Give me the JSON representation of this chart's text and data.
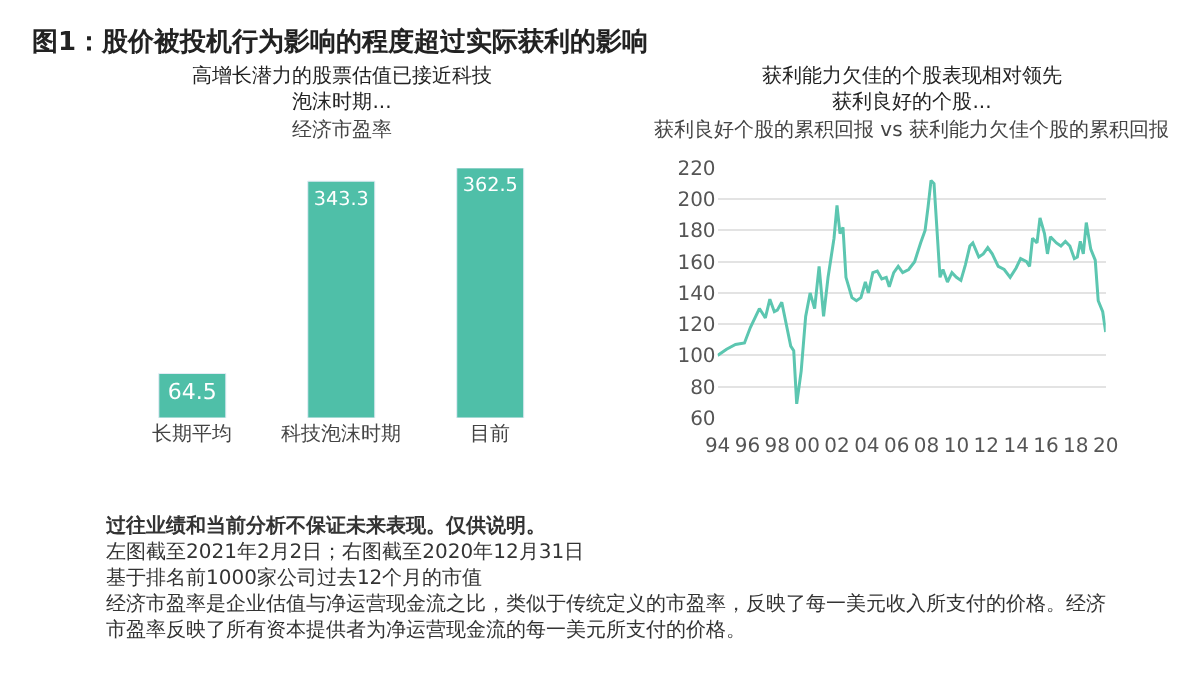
{
  "chart_data": [
    {
      "type": "other",
      "title": "图1：股价被投机行为影响的程度超过实际获利的影响",
      "annotations": [
        "过往业绩和当前分析不保证未来表现。仅供说明。",
        "左图截至2021年2月2日；右图截至2020年12月31日",
        "基于排名前1000家公司过去12个月的市值",
        "经济市盈率是企业估值与净运营现金流之比，类似于传统定义的市盈率，反映了每一美元收入所支付的价格。经济市盈率反映了所有资本提供者为净运营现金流的每一美元所支付的价格。"
      ]
    },
    {
      "type": "bar",
      "title": "高增长潜力的股票估值已接近科技泡沫时期...",
      "subtitle": "经济市盈率",
      "categories": [
        "长期平均",
        "科技泡沫时期",
        "目前"
      ],
      "values": [
        64.5,
        343.3,
        362.5
      ],
      "color": "#4fbfa8",
      "data_labels": true,
      "tick_labels": "x",
      "grid": false
    },
    {
      "type": "line",
      "title": "获利能力欠佳的个股表现相对领先获利良好的个股...",
      "subtitle": "获利良好个股的累积回报 vs 获利能力欠佳个股的累积回报",
      "color": "#5cc6b0",
      "grid": "y",
      "marker": "none",
      "line_style": "solid",
      "x": [
        1994.0,
        1994.6,
        1995.2,
        1995.8,
        1996.2,
        1996.6,
        1996.8,
        1997.2,
        1997.5,
        1997.8,
        1998.0,
        1998.3,
        1998.6,
        1998.9,
        1999.1,
        1999.3,
        1999.6,
        1999.9,
        2000.2,
        2000.5,
        2000.8,
        2001.1,
        2001.4,
        2001.8,
        2002.0,
        2002.2,
        2002.4,
        2002.6,
        2003.0,
        2003.3,
        2003.6,
        2003.9,
        2004.1,
        2004.4,
        2004.7,
        2005.0,
        2005.3,
        2005.5,
        2005.8,
        2006.1,
        2006.4,
        2006.8,
        2007.2,
        2007.6,
        2007.9,
        2008.1,
        2008.3,
        2008.5,
        2008.7,
        2008.9,
        2009.1,
        2009.4,
        2009.7,
        2010.0,
        2010.3,
        2010.6,
        2010.9,
        2011.1,
        2011.5,
        2011.8,
        2012.1,
        2012.4,
        2012.8,
        2013.2,
        2013.6,
        2014.0,
        2014.3,
        2014.7,
        2014.9,
        2015.1,
        2015.4,
        2015.6,
        2015.9,
        2016.1,
        2016.3,
        2016.7,
        2017.0,
        2017.3,
        2017.6,
        2017.9,
        2018.1,
        2018.3,
        2018.5,
        2018.7,
        2019.0,
        2019.3,
        2019.5,
        2019.8,
        2020.0
      ],
      "values": [
        100,
        104,
        107,
        108,
        118,
        126,
        130,
        124,
        136,
        128,
        129,
        134,
        120,
        106,
        103,
        69,
        90,
        125,
        140,
        130,
        157,
        125,
        150,
        175,
        196,
        178,
        182,
        150,
        137,
        135,
        137,
        147,
        140,
        153,
        154,
        149,
        150,
        144,
        153,
        157,
        153,
        155,
        160,
        172,
        180,
        195,
        212,
        210,
        180,
        150,
        155,
        147,
        153,
        150,
        148,
        158,
        170,
        172,
        163,
        165,
        169,
        165,
        157,
        155,
        150,
        156,
        162,
        160,
        157,
        175,
        172,
        188,
        178,
        165,
        176,
        172,
        170,
        173,
        170,
        162,
        163,
        173,
        165,
        185,
        168,
        161,
        135,
        128,
        115
      ],
      "xlim": [
        1994,
        2020
      ],
      "xticks": [
        {
          "value": 1994,
          "label": "94"
        },
        {
          "value": 1996,
          "label": "96"
        },
        {
          "value": 1998,
          "label": "98"
        },
        {
          "value": 2000,
          "label": "00"
        },
        {
          "value": 2002,
          "label": "02"
        },
        {
          "value": 2004,
          "label": "04"
        },
        {
          "value": 2006,
          "label": "06"
        },
        {
          "value": 2008,
          "label": "08"
        },
        {
          "value": 2010,
          "label": "10"
        },
        {
          "value": 2012,
          "label": "12"
        },
        {
          "value": 2014,
          "label": "14"
        },
        {
          "value": 2016,
          "label": "16"
        },
        {
          "value": 2018,
          "label": "18"
        },
        {
          "value": 2020,
          "label": "20"
        }
      ],
      "ylim": [
        60,
        220
      ],
      "yticks": [
        60,
        80,
        100,
        120,
        140,
        160,
        180,
        200,
        220
      ]
    }
  ]
}
